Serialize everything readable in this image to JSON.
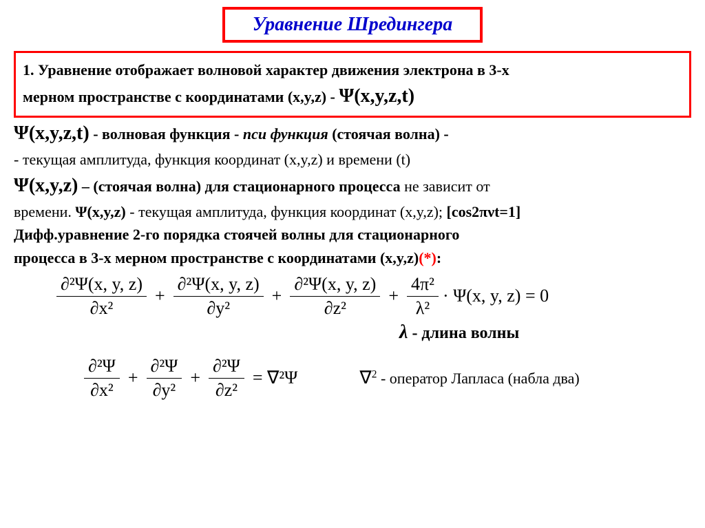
{
  "title": "Уравнение Шредингера",
  "box1_line1": "1. Уравнение отображает волновой характер движения электрона в 3-х",
  "box1_line2a": "мерном пространстве с координатами (x,y,z) - ",
  "box1_psi": "Ψ(x,y,z,t)",
  "p2_psi": "Ψ(x,y,z,t)",
  "p2_a": " -  волновая функция - ",
  "p2_b": "пси функция",
  "p2_c": " (стоячая волна) -",
  "p3": " - текущая амплитуда, функция координат (x,y,z) и времени (t)",
  "p4_psi": "Ψ(x,y,z)",
  "p4_a": " – (стоячая волна) для стационарного процесса",
  "p4_b": " не зависит от",
  "p5_a": "времени. ",
  "p5_psi": "Ψ(x,y,z)",
  "p5_b": " - текущая амплитуда, функция координат (x,y,z);   ",
  "p5_c": "[cos2πνt=1]",
  "p6": "Дифф.уравнение 2-го порядка стоячей волны  для стационарного",
  "p7_a": "процесса в 3-х мерном пространстве с координатами (x,y,z)",
  "p7_b": "(*)",
  "p7_c": ":",
  "eq1": {
    "t1_num": "∂²Ψ(x, y, z)",
    "t1_den": "∂x²",
    "t2_num": "∂²Ψ(x, y, z)",
    "t2_den": "∂y²",
    "t3_num": "∂²Ψ(x, y, z)",
    "t3_den": "∂z²",
    "t4_num": "4π²",
    "t4_den": "λ²",
    "tail": "· Ψ(x, y, z) = 0"
  },
  "lambda_sym": "λ",
  "lambda_text": " - длина волны",
  "eq2": {
    "t1_num": "∂²Ψ",
    "t1_den": "∂x²",
    "t2_num": "∂²Ψ",
    "t2_den": "∂y²",
    "t3_num": "∂²Ψ",
    "t3_den": "∂z²",
    "rhs": "= ∇²Ψ"
  },
  "nabla_sym": "∇",
  "nabla_sup": "2",
  "nabla_text": "  - оператор Лапласа (набла два)",
  "colors": {
    "border": "#ff0000",
    "title": "#0000cc",
    "text": "#000000",
    "bg": "#ffffff"
  }
}
